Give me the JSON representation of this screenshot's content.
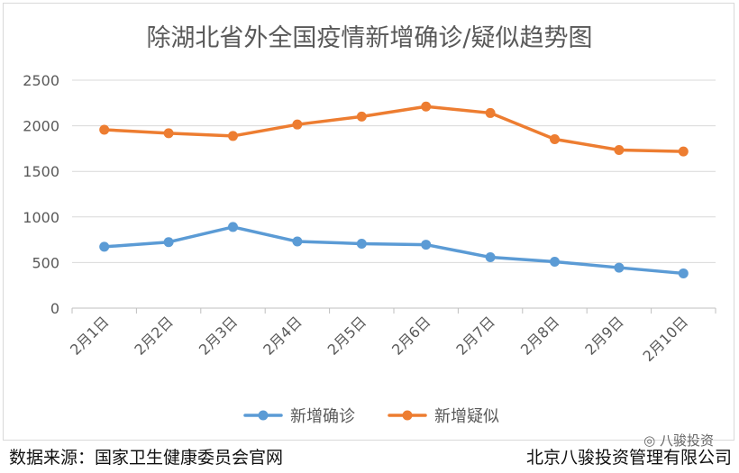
{
  "chart_data": {
    "type": "line",
    "title": "除湖北省外全国疫情新增确诊/疑似趋势图",
    "categories": [
      "2月1日",
      "2月2日",
      "2月3日",
      "2月4日",
      "2月5日",
      "2月6日",
      "2月7日",
      "2月8日",
      "2月9日",
      "2月10日"
    ],
    "y_ticks": [
      "0",
      "500",
      "1000",
      "1500",
      "2000",
      "2500"
    ],
    "ylim": [
      0,
      2500
    ],
    "grid": true,
    "legend_position": "bottom",
    "series": [
      {
        "name": "新增确诊",
        "color": "#5b9bd5",
        "values": [
          673,
          724,
          890,
          731,
          707,
          696,
          558,
          509,
          444,
          381
        ]
      },
      {
        "name": "新增疑似",
        "color": "#ed7d31",
        "values": [
          1957,
          1918,
          1888,
          2014,
          2101,
          2211,
          2140,
          1853,
          1734,
          1718
        ]
      }
    ]
  },
  "footer": {
    "source": "数据来源：国家卫生健康委员会官网",
    "company": "北京八骏投资管理有限公司",
    "watermark": "八骏投资"
  }
}
